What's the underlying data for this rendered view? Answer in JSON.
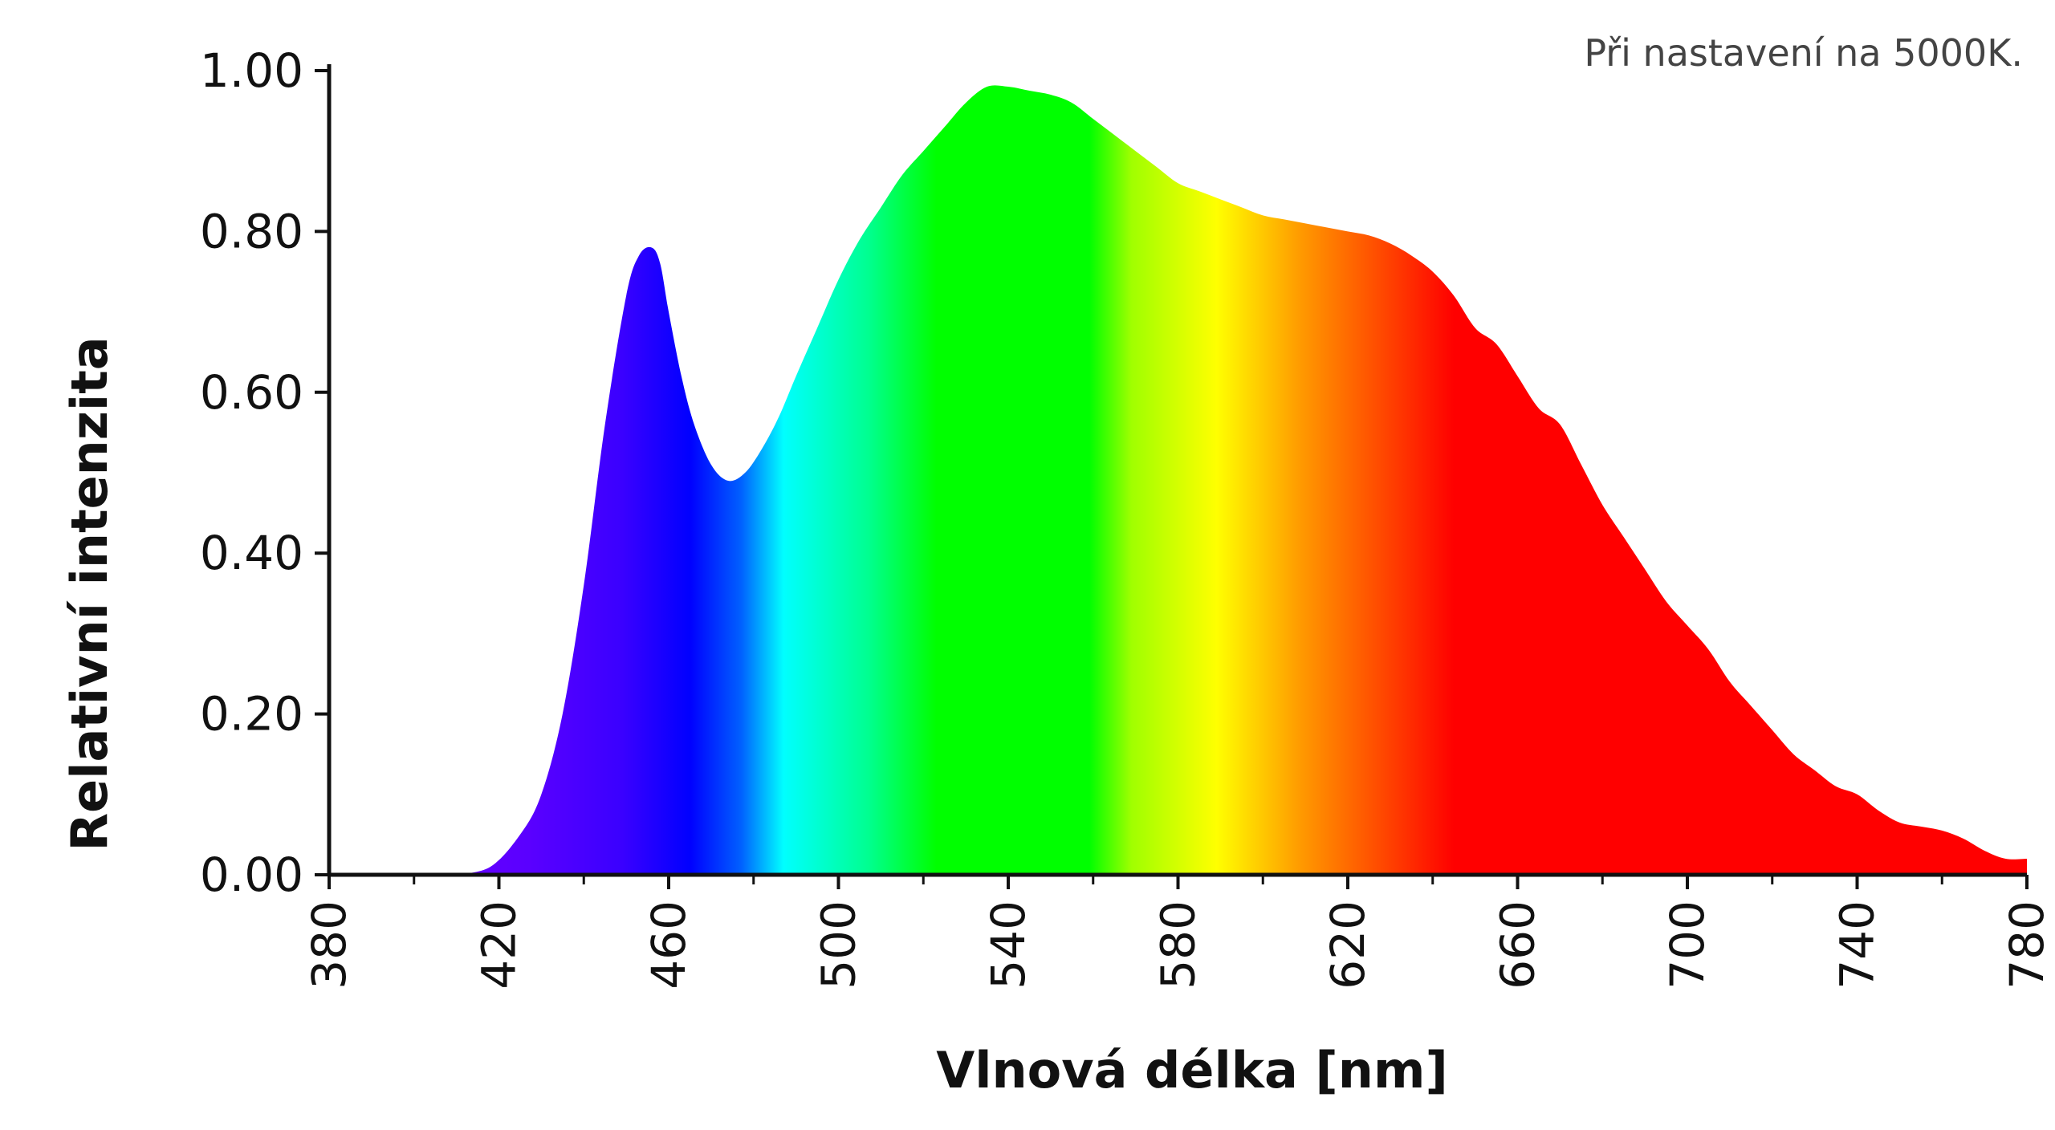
{
  "chart_data": {
    "type": "area",
    "annotation": "Při nastavení na 5000K.",
    "xlabel": "Vlnová délka [nm]",
    "ylabel": "Relativní intenzita",
    "xlim": [
      380,
      780
    ],
    "ylim": [
      0,
      1
    ],
    "x_ticks": [
      "380",
      "420",
      "460",
      "500",
      "540",
      "580",
      "620",
      "660",
      "700",
      "740",
      "780"
    ],
    "y_ticks": [
      "0.00",
      "0.20",
      "0.40",
      "0.60",
      "0.80",
      "1.00"
    ],
    "grid": false,
    "fill": "spectral rainbow gradient by wavelength",
    "series": [
      {
        "x": [
          410,
          418,
          425,
          430,
          435,
          440,
          445,
          450,
          453,
          456,
          458,
          460,
          463,
          466,
          470,
          474,
          478,
          482,
          486,
          490,
          495,
          500,
          505,
          510,
          515,
          520,
          525,
          530,
          535,
          540,
          545,
          550,
          555,
          560,
          565,
          570,
          575,
          580,
          585,
          590,
          595,
          600,
          605,
          610,
          615,
          620,
          625,
          630,
          635,
          640,
          645,
          650,
          655,
          660,
          665,
          670,
          675,
          680,
          685,
          690,
          695,
          700,
          705,
          710,
          715,
          720,
          725,
          730,
          735,
          740,
          745,
          750,
          755,
          760,
          765,
          770,
          775,
          780
        ],
        "y": [
          0.0,
          0.01,
          0.05,
          0.1,
          0.2,
          0.36,
          0.56,
          0.72,
          0.77,
          0.78,
          0.76,
          0.7,
          0.62,
          0.56,
          0.51,
          0.49,
          0.5,
          0.53,
          0.57,
          0.62,
          0.68,
          0.74,
          0.79,
          0.83,
          0.87,
          0.9,
          0.93,
          0.96,
          0.98,
          0.98,
          0.975,
          0.97,
          0.96,
          0.94,
          0.92,
          0.9,
          0.88,
          0.86,
          0.85,
          0.84,
          0.83,
          0.82,
          0.815,
          0.81,
          0.805,
          0.8,
          0.795,
          0.785,
          0.77,
          0.75,
          0.72,
          0.68,
          0.66,
          0.62,
          0.58,
          0.56,
          0.51,
          0.46,
          0.42,
          0.38,
          0.34,
          0.31,
          0.28,
          0.24,
          0.21,
          0.18,
          0.15,
          0.13,
          0.11,
          0.1,
          0.08,
          0.065,
          0.06,
          0.055,
          0.045,
          0.03,
          0.02,
          0.02
        ]
      }
    ]
  }
}
